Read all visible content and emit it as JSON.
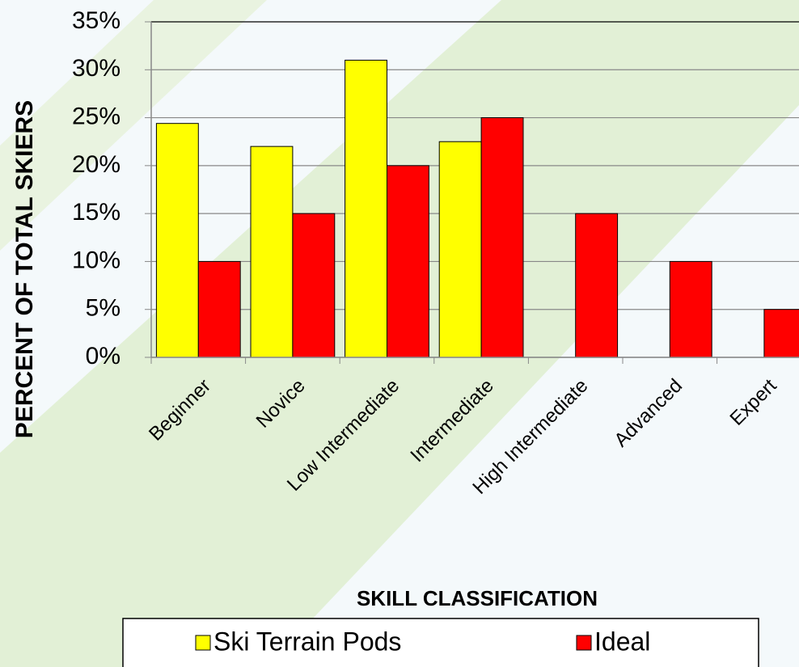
{
  "chart_data": {
    "type": "bar",
    "categories": [
      "Beginner",
      "Novice",
      "Low Intermediate",
      "Intermediate",
      "High Intermediate",
      "Advanced",
      "Expert"
    ],
    "series": [
      {
        "name": "Ski Terrain Pods",
        "color": "#ffff00",
        "values": [
          24.4,
          22,
          31,
          22.5,
          null,
          null,
          null
        ]
      },
      {
        "name": "Ideal",
        "color": "#ff0000",
        "values": [
          10,
          15,
          20,
          25,
          15,
          10,
          5
        ]
      }
    ],
    "ylabel": "PERCENT OF TOTAL SKIERS",
    "xlabel": "SKILL CLASSIFICATION",
    "ylim": [
      0,
      35
    ],
    "yticks": [
      {
        "value": 0,
        "label": "0%"
      },
      {
        "value": 5,
        "label": "5%"
      },
      {
        "value": 10,
        "label": "10%"
      },
      {
        "value": 15,
        "label": "15%"
      },
      {
        "value": 20,
        "label": "20%"
      },
      {
        "value": 25,
        "label": "25%"
      },
      {
        "value": 30,
        "label": "30%"
      },
      {
        "value": 35,
        "label": "35%"
      }
    ],
    "grid": true,
    "legend": "bottom"
  }
}
